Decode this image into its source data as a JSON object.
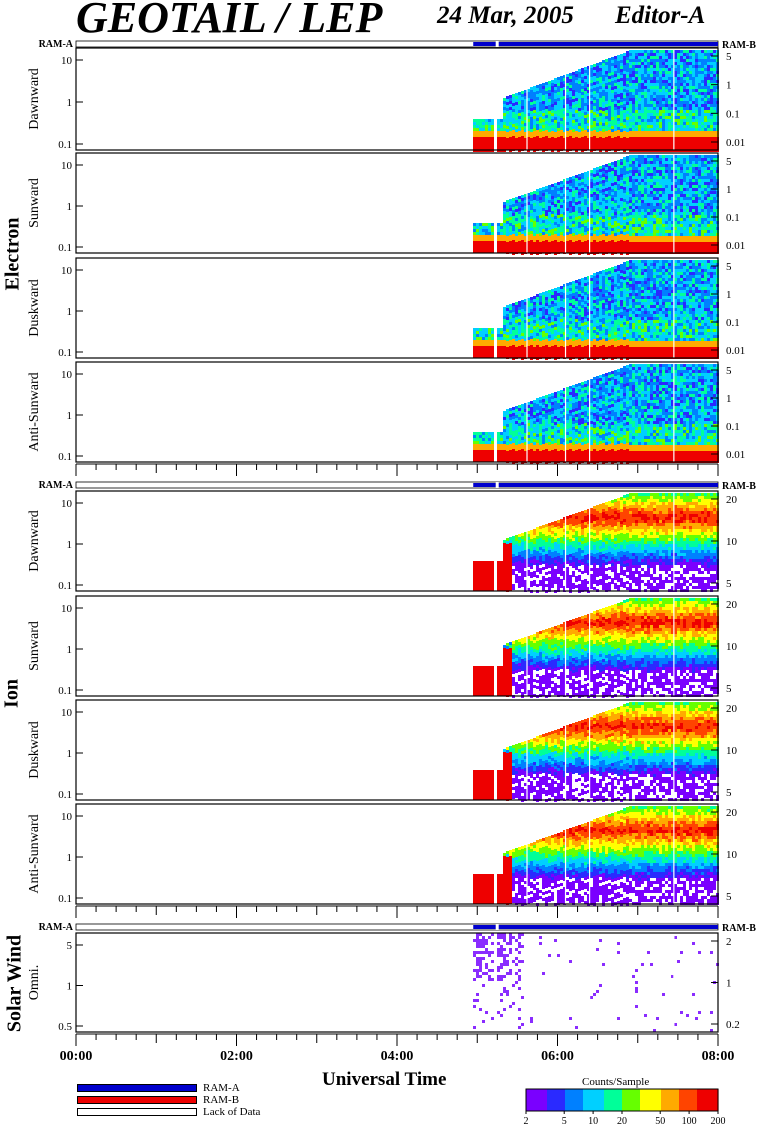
{
  "header": {
    "title": "GEOTAIL / LEP",
    "date": "24 Mar, 2005",
    "editor": "Editor-A"
  },
  "group_labels": {
    "electron": "Electron",
    "ion": "Ion",
    "solar_wind": "Solar Wind"
  },
  "ram_labels": {
    "a": "RAM-A",
    "b": "RAM-B"
  },
  "xaxis": {
    "label": "Universal Time",
    "ticks": [
      "00:00",
      "02:00",
      "04:00",
      "06:00",
      "08:00"
    ]
  },
  "legend": {
    "ram_a": "RAM-A",
    "ram_b": "RAM-B",
    "lack": "Lack of Data"
  },
  "colorbar": {
    "title": "Counts/Sample",
    "ticks": [
      "2",
      "5",
      "10",
      "20",
      "50",
      "100",
      "200"
    ]
  },
  "colors": {
    "ram_a": "#0000cc",
    "ram_b": "#ee0000"
  },
  "chart_data": {
    "type": "heatmap",
    "x_range_hours": [
      0,
      8
    ],
    "data_start_hour": 4.95,
    "panels": [
      {
        "group": "Electron",
        "label": "Dawnward",
        "left_ticks": [
          "0.1",
          "1",
          "10"
        ],
        "right_ticks": [
          "5",
          "1",
          "0.1",
          "0.01"
        ]
      },
      {
        "group": "Electron",
        "label": "Sunward",
        "left_ticks": [
          "0.1",
          "1",
          "10"
        ],
        "right_ticks": [
          "5",
          "1",
          "0.1",
          "0.01"
        ]
      },
      {
        "group": "Electron",
        "label": "Duskward",
        "left_ticks": [
          "0.1",
          "1",
          "10"
        ],
        "right_ticks": [
          "5",
          "1",
          "0.1",
          "0.01"
        ]
      },
      {
        "group": "Electron",
        "label": "Anti-Sunward",
        "left_ticks": [
          "0.1",
          "1",
          "10"
        ],
        "right_ticks": [
          "5",
          "1",
          "0.1",
          "0.01"
        ]
      },
      {
        "group": "Ion",
        "label": "Dawnward",
        "left_ticks": [
          "0.1",
          "1",
          "10"
        ],
        "right_ticks": [
          "20",
          "10",
          "5"
        ]
      },
      {
        "group": "Ion",
        "label": "Sunward",
        "left_ticks": [
          "0.1",
          "1",
          "10"
        ],
        "right_ticks": [
          "20",
          "10",
          "5"
        ]
      },
      {
        "group": "Ion",
        "label": "Duskward",
        "left_ticks": [
          "0.1",
          "1",
          "10"
        ],
        "right_ticks": [
          "20",
          "10",
          "5"
        ]
      },
      {
        "group": "Ion",
        "label": "Anti-Sunward",
        "left_ticks": [
          "0.1",
          "1",
          "10"
        ],
        "right_ticks": [
          "20",
          "10",
          "5"
        ]
      },
      {
        "group": "Solar Wind",
        "label": "Omni.",
        "left_ticks": [
          "0.5",
          "1",
          "5"
        ],
        "right_ticks": [
          "2",
          "1",
          "0.2"
        ]
      }
    ]
  }
}
